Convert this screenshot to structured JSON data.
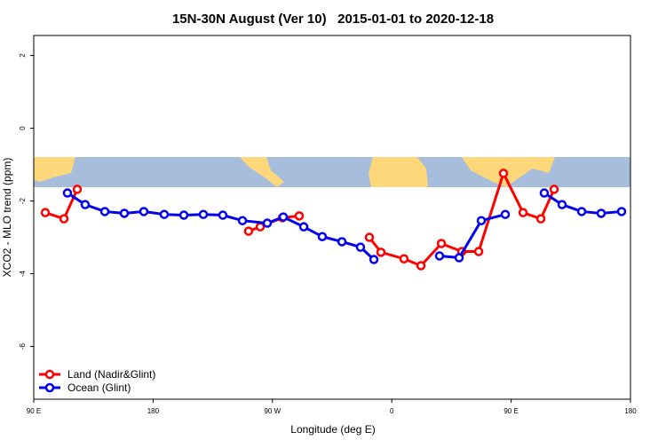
{
  "chart_data": {
    "type": "line",
    "title": "15N-30N August (Ver 10)   2015-01-01 to 2020-12-18",
    "xlabel": "Longitude (deg E)",
    "ylabel": "XCO2 - MLO trend (ppm)",
    "xlim": [
      90,
      540
    ],
    "xticks": [
      {
        "value": 90,
        "label": "90 E"
      },
      {
        "value": 180,
        "label": "180"
      },
      {
        "value": 270,
        "label": "90 W"
      },
      {
        "value": 360,
        "label": "0"
      },
      {
        "value": 450,
        "label": "90 E"
      },
      {
        "value": 540,
        "label": "180"
      }
    ],
    "ylim": [
      -7.45,
      2.55
    ],
    "yticks": [
      2,
      0,
      -2,
      -4,
      -6
    ],
    "legend": "bottom-left",
    "series": [
      {
        "name": "Land (Nadir&Glint)",
        "color": "#ff0000",
        "x": [
          98.7,
          112.8,
          122.8,
          null,
          252,
          260.8,
          277.5,
          290.2,
          null,
          343.1,
          351.8,
          369.2,
          382,
          397.4,
          412.8,
          425.5,
          444.2,
          459,
          472.4,
          482.4
        ],
        "values": [
          -2.32,
          -2.49,
          -1.68,
          null,
          -2.83,
          -2.71,
          -2.46,
          -2.41,
          null,
          -3.0,
          -3.41,
          -3.59,
          -3.78,
          -3.17,
          -3.39,
          -3.39,
          -1.24,
          -2.32,
          -2.49,
          -1.68
        ]
      },
      {
        "name": "Ocean (Glint)",
        "color": "#0000ee",
        "x": [
          115.4,
          128.8,
          143.6,
          158.3,
          173,
          188.4,
          203.2,
          217.9,
          232.6,
          247.4,
          266.1,
          278.2,
          293.6,
          307.6,
          322.4,
          336.4,
          346.5,
          null,
          396,
          410.8,
          427.5,
          445.6,
          null,
          475,
          488.4,
          503.2,
          517.9,
          533.3
        ],
        "values": [
          -1.78,
          -2.1,
          -2.29,
          -2.34,
          -2.29,
          -2.37,
          -2.39,
          -2.37,
          -2.39,
          -2.54,
          -2.61,
          -2.44,
          -2.71,
          -2.98,
          -3.12,
          -3.27,
          -3.61,
          null,
          -3.51,
          -3.56,
          -2.54,
          -2.37,
          null,
          -1.78,
          -2.1,
          -2.29,
          -2.34,
          -2.29
        ]
      }
    ]
  }
}
